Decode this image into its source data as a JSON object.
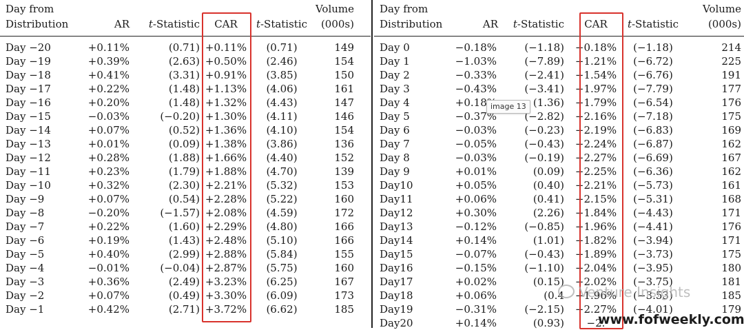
{
  "headers": {
    "day_line1": "Day from",
    "day_line2": "Distribution",
    "ar": "AR",
    "t_italic": "t",
    "t_rest": "-Statistic",
    "car": "CAR",
    "volume_line1": "Volume",
    "volume_line2": "(000s)"
  },
  "left_rows": [
    {
      "day": "Day −20",
      "ar": "+0.11%",
      "t1": "(0.71)",
      "car": "+0.11%",
      "t2": "(0.71)",
      "vol": "149"
    },
    {
      "day": "Day −19",
      "ar": "+0.39%",
      "t1": "(2.63)",
      "car": "+0.50%",
      "t2": "(2.46)",
      "vol": "154"
    },
    {
      "day": "Day −18",
      "ar": "+0.41%",
      "t1": "(3.31)",
      "car": "+0.91%",
      "t2": "(3.85)",
      "vol": "150"
    },
    {
      "day": "Day −17",
      "ar": "+0.22%",
      "t1": "(1.48)",
      "car": "+1.13%",
      "t2": "(4.06)",
      "vol": "161"
    },
    {
      "day": "Day −16",
      "ar": "+0.20%",
      "t1": "(1.48)",
      "car": "+1.32%",
      "t2": "(4.43)",
      "vol": "147"
    },
    {
      "day": "Day −15",
      "ar": "−0.03%",
      "t1": "(−0.20)",
      "car": "+1.30%",
      "t2": "(4.11)",
      "vol": "146"
    },
    {
      "day": "Day −14",
      "ar": "+0.07%",
      "t1": "(0.52)",
      "car": "+1.36%",
      "t2": "(4.10)",
      "vol": "154"
    },
    {
      "day": "Day −13",
      "ar": "+0.01%",
      "t1": "(0.09)",
      "car": "+1.38%",
      "t2": "(3.86)",
      "vol": "136"
    },
    {
      "day": "Day −12",
      "ar": "+0.28%",
      "t1": "(1.88)",
      "car": "+1.66%",
      "t2": "(4.40)",
      "vol": "152"
    },
    {
      "day": "Day −11",
      "ar": "+0.23%",
      "t1": "(1.79)",
      "car": "+1.88%",
      "t2": "(4.70)",
      "vol": "139"
    },
    {
      "day": "Day −10",
      "ar": "+0.32%",
      "t1": "(2.30)",
      "car": "+2.21%",
      "t2": "(5.32)",
      "vol": "153"
    },
    {
      "day": "Day −9",
      "ar": "+0.07%",
      "t1": "(0.54)",
      "car": "+2.28%",
      "t2": "(5.22)",
      "vol": "160"
    },
    {
      "day": "Day −8",
      "ar": "−0.20%",
      "t1": "(−1.57)",
      "car": "+2.08%",
      "t2": "(4.59)",
      "vol": "172"
    },
    {
      "day": "Day −7",
      "ar": "+0.22%",
      "t1": "(1.60)",
      "car": "+2.29%",
      "t2": "(4.80)",
      "vol": "166"
    },
    {
      "day": "Day −6",
      "ar": "+0.19%",
      "t1": "(1.43)",
      "car": "+2.48%",
      "t2": "(5.10)",
      "vol": "166"
    },
    {
      "day": "Day −5",
      "ar": "+0.40%",
      "t1": "(2.99)",
      "car": "+2.88%",
      "t2": "(5.84)",
      "vol": "155"
    },
    {
      "day": "Day −4",
      "ar": "−0.01%",
      "t1": "(−0.04)",
      "car": "+2.87%",
      "t2": "(5.75)",
      "vol": "160"
    },
    {
      "day": "Day −3",
      "ar": "+0.36%",
      "t1": "(2.49)",
      "car": "+3.23%",
      "t2": "(6.25)",
      "vol": "167"
    },
    {
      "day": "Day −2",
      "ar": "+0.07%",
      "t1": "(0.49)",
      "car": "+3.30%",
      "t2": "(6.09)",
      "vol": "173"
    },
    {
      "day": "Day −1",
      "ar": "+0.42%",
      "t1": "(2.71)",
      "car": "+3.72%",
      "t2": "(6.62)",
      "vol": "185"
    }
  ],
  "right_rows": [
    {
      "day": "Day 0",
      "ar": "−0.18%",
      "t1": "(−1.18)",
      "car": "−0.18%",
      "t2": "(−1.18)",
      "vol": "214"
    },
    {
      "day": "Day 1",
      "ar": "−1.03%",
      "t1": "(−7.89)",
      "car": "−1.21%",
      "t2": "(−6.72)",
      "vol": "225"
    },
    {
      "day": "Day 2",
      "ar": "−0.33%",
      "t1": "(−2.41)",
      "car": "−1.54%",
      "t2": "(−6.76)",
      "vol": "191"
    },
    {
      "day": "Day 3",
      "ar": "−0.43%",
      "t1": "(−3.41)",
      "car": "−1.97%",
      "t2": "(−7.79)",
      "vol": "177"
    },
    {
      "day": "Day 4",
      "ar": "+0.18%",
      "t1": "(1.36)",
      "car": "−1.79%",
      "t2": "(−6.54)",
      "vol": "176"
    },
    {
      "day": "Day 5",
      "ar": "−0.37%",
      "t1": "(−2.82)",
      "car": "−2.16%",
      "t2": "(−7.18)",
      "vol": "175"
    },
    {
      "day": "Day 6",
      "ar": "−0.03%",
      "t1": "(−0.23)",
      "car": "−2.19%",
      "t2": "(−6.83)",
      "vol": "169"
    },
    {
      "day": "Day 7",
      "ar": "−0.05%",
      "t1": "(−0.43)",
      "car": "−2.24%",
      "t2": "(−6.87)",
      "vol": "162"
    },
    {
      "day": "Day 8",
      "ar": "−0.03%",
      "t1": "(−0.19)",
      "car": "−2.27%",
      "t2": "(−6.69)",
      "vol": "167"
    },
    {
      "day": "Day 9",
      "ar": "+0.01%",
      "t1": "(0.09)",
      "car": "−2.25%",
      "t2": "(−6.36)",
      "vol": "162"
    },
    {
      "day": "Day10",
      "ar": "+0.05%",
      "t1": "(0.40)",
      "car": "−2.21%",
      "t2": "(−5.73)",
      "vol": "161"
    },
    {
      "day": "Day11",
      "ar": "+0.06%",
      "t1": "(0.41)",
      "car": "−2.15%",
      "t2": "(−5.31)",
      "vol": "168"
    },
    {
      "day": "Day12",
      "ar": "+0.30%",
      "t1": "(2.26)",
      "car": "−1.84%",
      "t2": "(−4.43)",
      "vol": "171"
    },
    {
      "day": "Day13",
      "ar": "−0.12%",
      "t1": "(−0.85)",
      "car": "−1.96%",
      "t2": "(−4.41)",
      "vol": "176"
    },
    {
      "day": "Day14",
      "ar": "+0.14%",
      "t1": "(1.01)",
      "car": "−1.82%",
      "t2": "(−3.94)",
      "vol": "171"
    },
    {
      "day": "Day15",
      "ar": "−0.07%",
      "t1": "(−0.43)",
      "car": "−1.89%",
      "t2": "(−3.73)",
      "vol": "175"
    },
    {
      "day": "Day16",
      "ar": "−0.15%",
      "t1": "(−1.10)",
      "car": "−2.04%",
      "t2": "(−3.95)",
      "vol": "180"
    },
    {
      "day": "Day17",
      "ar": "+0.02%",
      "t1": "(0.15)",
      "car": "−2.02%",
      "t2": "(−3.75)",
      "vol": "181"
    },
    {
      "day": "Day18",
      "ar": "+0.06%",
      "t1": "(0.4",
      "car": "−1.96%",
      "t2": "(−3.53)",
      "vol": "185"
    },
    {
      "day": "Day19",
      "ar": "−0.31%",
      "t1": "(−2.15)",
      "car": "−2.27%",
      "t2": "(−4.01)",
      "vol": "179"
    },
    {
      "day": "Day20",
      "ar": "+0.14%",
      "t1": "(0.93)",
      "car": "−2.",
      "t2": "",
      "vol": ""
    }
  ],
  "tooltip": "image 13",
  "watermark": "Venture Insights",
  "site": "www.fofweekly.com",
  "colors": {
    "highlight": "#d8322c",
    "text": "#1a1a1a"
  }
}
